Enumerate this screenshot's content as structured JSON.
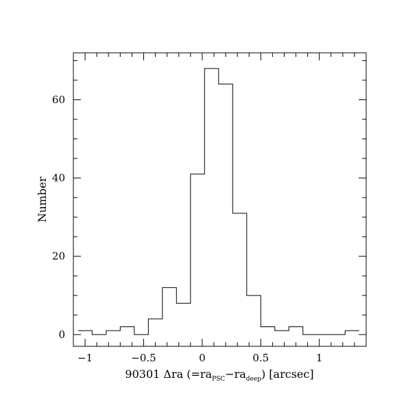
{
  "chart_data": {
    "type": "bar",
    "title": "",
    "xlabel": {
      "prefix": "90301 Δra (=ra",
      "sub1": "PSC",
      "mid": "−ra",
      "sub2": "deep",
      "suffix": ") [arcsec]"
    },
    "ylabel": "Number",
    "xlim": [
      -1.1,
      1.4
    ],
    "ylim": [
      -3,
      72
    ],
    "x_major_ticks": [
      {
        "value": -1,
        "label": "−1"
      },
      {
        "value": -0.5,
        "label": "−0.5"
      },
      {
        "value": 0,
        "label": "0"
      },
      {
        "value": 0.5,
        "label": "0.5"
      },
      {
        "value": 1,
        "label": "1"
      }
    ],
    "y_major_ticks": [
      {
        "value": 0,
        "label": "0"
      },
      {
        "value": 20,
        "label": "20"
      },
      {
        "value": 40,
        "label": "40"
      },
      {
        "value": 60,
        "label": "60"
      }
    ],
    "x_minor_step": 0.1,
    "y_minor_step": 5,
    "bins": {
      "edges": [
        -1.06,
        -0.94,
        -0.82,
        -0.7,
        -0.58,
        -0.46,
        -0.34,
        -0.22,
        -0.1,
        0.02,
        0.14,
        0.26,
        0.38,
        0.5,
        0.62,
        0.74,
        0.86,
        0.98,
        1.1,
        1.22,
        1.34
      ],
      "counts": [
        1,
        0,
        1,
        2,
        0,
        4,
        12,
        8,
        41,
        68,
        64,
        31,
        10,
        2,
        1,
        2,
        0,
        0,
        0,
        1
      ]
    },
    "grid": false,
    "legend": "none"
  }
}
